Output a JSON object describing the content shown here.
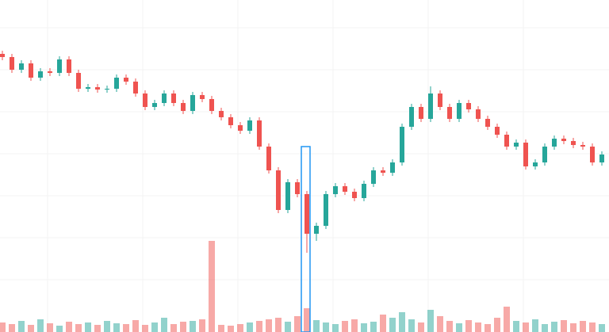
{
  "chart_data": {
    "type": "candlestick",
    "ylim": [
      0,
      419
    ],
    "yticks": [
      384,
      331,
      278,
      225,
      172,
      119,
      66
    ],
    "grid": true,
    "volume_ylim": [
      0,
      419
    ],
    "up_color": "#26a69a",
    "down_color": "#ef5350",
    "open": [
      351,
      347,
      331,
      339,
      321,
      329,
      327,
      344,
      327,
      307,
      309,
      306,
      307,
      321,
      316,
      301,
      284,
      289,
      301,
      289,
      279,
      299,
      294,
      279,
      271,
      261,
      254,
      267,
      234,
      204,
      154,
      189,
      174,
      124,
      134,
      174,
      184,
      177,
      169,
      187,
      204,
      201,
      214,
      259,
      284,
      269,
      301,
      284,
      269,
      289,
      281,
      269,
      259,
      249,
      234,
      239,
      209,
      214,
      234,
      244,
      241,
      236,
      234,
      214
    ],
    "high": [
      355,
      351,
      343,
      343,
      333,
      333,
      348,
      348,
      331,
      313,
      313,
      311,
      325,
      325,
      320,
      305,
      293,
      305,
      305,
      293,
      303,
      303,
      298,
      283,
      275,
      265,
      271,
      271,
      238,
      208,
      193,
      193,
      178,
      138,
      178,
      188,
      188,
      181,
      191,
      208,
      208,
      218,
      263,
      288,
      288,
      310,
      305,
      288,
      293,
      293,
      285,
      273,
      263,
      253,
      243,
      243,
      218,
      238,
      248,
      248,
      245,
      240,
      238,
      228
    ],
    "low": [
      343,
      327,
      327,
      317,
      317,
      323,
      323,
      323,
      303,
      303,
      302,
      302,
      303,
      312,
      297,
      280,
      280,
      285,
      285,
      275,
      275,
      290,
      275,
      267,
      257,
      250,
      250,
      230,
      200,
      150,
      150,
      170,
      100,
      115,
      130,
      170,
      173,
      165,
      165,
      183,
      197,
      197,
      210,
      255,
      265,
      265,
      280,
      265,
      265,
      277,
      265,
      255,
      245,
      230,
      230,
      205,
      205,
      210,
      230,
      237,
      232,
      230,
      210,
      210
    ],
    "close": [
      347,
      331,
      339,
      321,
      329,
      327,
      344,
      327,
      307,
      309,
      306,
      307,
      321,
      316,
      301,
      284,
      289,
      301,
      289,
      279,
      299,
      294,
      279,
      271,
      261,
      254,
      267,
      234,
      204,
      154,
      189,
      174,
      124,
      134,
      174,
      184,
      177,
      169,
      187,
      204,
      201,
      214,
      259,
      284,
      269,
      301,
      284,
      269,
      289,
      281,
      269,
      259,
      249,
      234,
      239,
      209,
      214,
      234,
      244,
      241,
      236,
      234,
      214,
      224
    ],
    "volume": [
      12,
      10,
      14,
      9,
      16,
      11,
      8,
      13,
      10,
      12,
      9,
      14,
      11,
      10,
      15,
      9,
      12,
      18,
      10,
      13,
      14,
      16,
      115,
      9,
      8,
      10,
      12,
      14,
      16,
      18,
      13,
      20,
      30,
      15,
      12,
      10,
      14,
      16,
      11,
      13,
      22,
      18,
      25,
      16,
      12,
      28,
      20,
      14,
      11,
      15,
      12,
      10,
      18,
      32,
      14,
      12,
      16,
      10,
      13,
      15,
      11,
      14,
      12,
      10
    ]
  }
}
